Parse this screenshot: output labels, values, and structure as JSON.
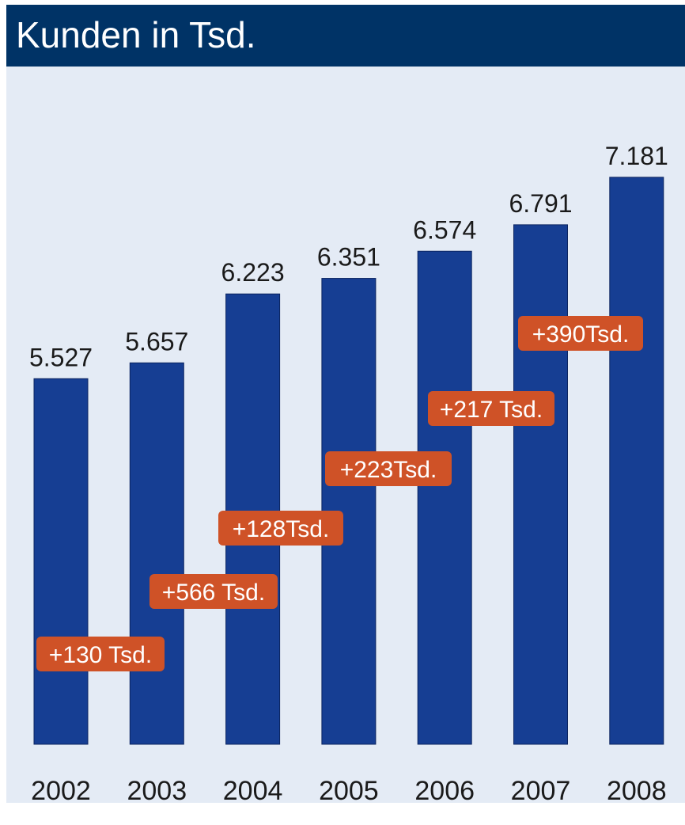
{
  "header": {
    "title": "Kunden in Tsd."
  },
  "colors": {
    "header_bg": "#003366",
    "panel_bg": "#e4ebf5",
    "bar": "#163e93",
    "badge": "#cf5227"
  },
  "chart_data": {
    "type": "bar",
    "title": "Kunden in Tsd.",
    "categories": [
      "2002",
      "2003",
      "2004",
      "2005",
      "2006",
      "2007",
      "2008"
    ],
    "values": [
      5527,
      5657,
      6223,
      6351,
      6574,
      6791,
      7181
    ],
    "value_labels": [
      "5.527",
      "5.657",
      "6.223",
      "6.351",
      "6.574",
      "6.791",
      "7.181"
    ],
    "annotations": [
      "+130 Tsd.",
      "+566 Tsd.",
      "+128Tsd.",
      "+223Tsd.",
      "+217 Tsd.",
      "+390Tsd."
    ],
    "xlabel": "",
    "ylabel": "",
    "grid": false
  }
}
